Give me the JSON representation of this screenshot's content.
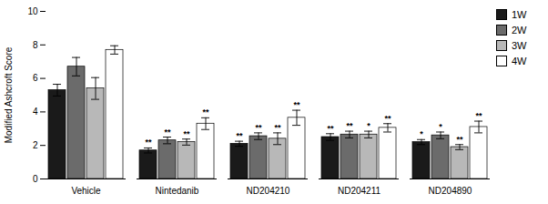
{
  "chart_data": {
    "type": "bar",
    "categories": [
      "Vehicle",
      "Nintedanib",
      "ND204210",
      "ND204211",
      "ND204890"
    ],
    "series": [
      {
        "name": "1W",
        "color": "#1a1a1a",
        "values": [
          5.3,
          1.7,
          2.1,
          2.5,
          2.2
        ],
        "errors": [
          0.35,
          0.15,
          0.15,
          0.2,
          0.15
        ],
        "significance": [
          null,
          "**",
          "**",
          "**",
          "*"
        ]
      },
      {
        "name": "2W",
        "color": "#6b6b6b",
        "values": [
          6.7,
          2.3,
          2.55,
          2.65,
          2.6
        ],
        "errors": [
          0.55,
          0.2,
          0.2,
          0.2,
          0.2
        ],
        "significance": [
          null,
          "**",
          "**",
          "**",
          "*"
        ]
      },
      {
        "name": "3W",
        "color": "#b8b8b8",
        "values": [
          5.4,
          2.2,
          2.4,
          2.65,
          1.9
        ],
        "errors": [
          0.65,
          0.18,
          0.35,
          0.2,
          0.15
        ],
        "significance": [
          null,
          "**",
          "**",
          "*",
          "**"
        ]
      },
      {
        "name": "4W",
        "color": "#ffffff",
        "values": [
          7.7,
          3.3,
          3.65,
          3.05,
          3.1
        ],
        "errors": [
          0.25,
          0.35,
          0.45,
          0.25,
          0.35
        ],
        "significance": [
          null,
          "**",
          "**",
          "**",
          "**"
        ]
      }
    ],
    "ylabel": "Modified Ashcroft Score",
    "ylim": [
      0,
      10
    ],
    "yticks": [
      0,
      2,
      4,
      6,
      8,
      10
    ],
    "grid": false,
    "legend": "right"
  }
}
